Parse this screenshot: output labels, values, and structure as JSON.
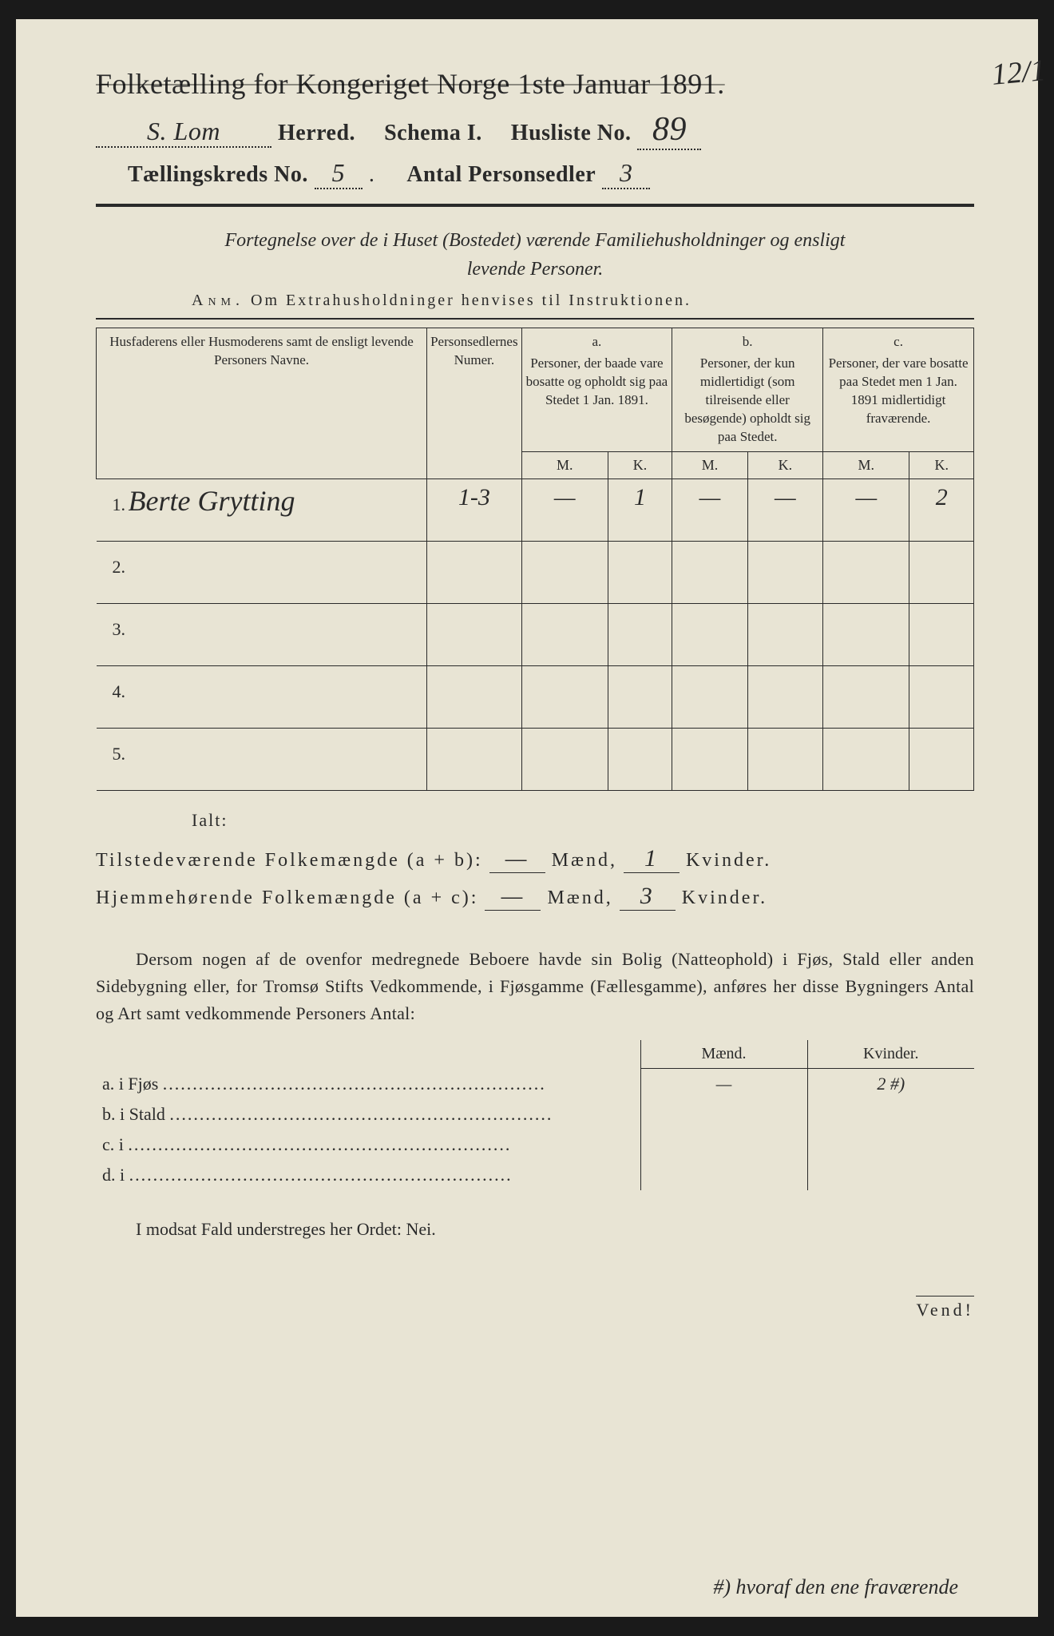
{
  "colors": {
    "paper": "#e8e4d4",
    "ink": "#2a2a2a",
    "background": "#1a1a1a"
  },
  "header": {
    "title": "Folketælling for Kongeriget Norge 1ste Januar 1891.",
    "margin_annotation": "12/1",
    "line2": {
      "herred_value": "S. Lom",
      "herred_label": "Herred.",
      "schema_label": "Schema I.",
      "husliste_label": "Husliste No.",
      "husliste_value": "89"
    },
    "line3": {
      "kreds_label": "Tællingskreds No.",
      "kreds_value": "5",
      "antal_label": "Antal Personsedler",
      "antal_value": "3"
    }
  },
  "subtitle": {
    "line1": "Fortegnelse over de i Huset (Bostedet) værende Familiehusholdninger og ensligt",
    "line2": "levende Personer."
  },
  "anm": {
    "label": "Anm.",
    "text": "Om Extrahusholdninger henvises til Instruktionen."
  },
  "table": {
    "col_names_header": "Husfaderens eller Husmoderens samt de ensligt levende Personers Navne.",
    "col_num_header": "Personsedlernes Numer.",
    "col_a": {
      "letter": "a.",
      "text": "Personer, der baade vare bosatte og opholdt sig paa Stedet 1 Jan. 1891."
    },
    "col_b": {
      "letter": "b.",
      "text": "Personer, der kun midlertidigt (som tilreisende eller besøgende) opholdt sig paa Stedet."
    },
    "col_c": {
      "letter": "c.",
      "text": "Personer, der vare bosatte paa Stedet men 1 Jan. 1891 midlertidigt fraværende."
    },
    "mk": {
      "m": "M.",
      "k": "K."
    },
    "rows": [
      {
        "num": "1.",
        "name": "Berte Grytting",
        "sedler": "1-3",
        "a_m": "—",
        "a_k": "1",
        "b_m": "—",
        "b_k": "—",
        "c_m": "—",
        "c_k": "2"
      },
      {
        "num": "2.",
        "name": "",
        "sedler": "",
        "a_m": "",
        "a_k": "",
        "b_m": "",
        "b_k": "",
        "c_m": "",
        "c_k": ""
      },
      {
        "num": "3.",
        "name": "",
        "sedler": "",
        "a_m": "",
        "a_k": "",
        "b_m": "",
        "b_k": "",
        "c_m": "",
        "c_k": ""
      },
      {
        "num": "4.",
        "name": "",
        "sedler": "",
        "a_m": "",
        "a_k": "",
        "b_m": "",
        "b_k": "",
        "c_m": "",
        "c_k": ""
      },
      {
        "num": "5.",
        "name": "",
        "sedler": "",
        "a_m": "",
        "a_k": "",
        "b_m": "",
        "b_k": "",
        "c_m": "",
        "c_k": ""
      }
    ]
  },
  "ialt_label": "Ialt:",
  "totals": {
    "line1": {
      "label": "Tilstedeværende Folkemængde (a + b):",
      "maend": "—",
      "maend_label": "Mænd,",
      "kvinder": "1",
      "kvinder_label": "Kvinder."
    },
    "line2": {
      "label": "Hjemmehørende Folkemængde (a + c):",
      "maend": "—",
      "maend_label": "Mænd,",
      "kvinder": "3",
      "kvinder_label": "Kvinder."
    }
  },
  "paragraph": "Dersom nogen af de ovenfor medregnede Beboere havde sin Bolig (Natteophold) i Fjøs, Stald eller anden Sidebygning eller, for Tromsø Stifts Vedkommende, i Fjøsgamme (Fællesgamme), anføres her disse Bygningers Antal og Art samt vedkommende Personers Antal:",
  "buildings": {
    "head_m": "Mænd.",
    "head_k": "Kvinder.",
    "rows": [
      {
        "label": "a.  i      Fjøs",
        "m": "—",
        "k": "2  #)"
      },
      {
        "label": "b.  i      Stald",
        "m": "",
        "k": ""
      },
      {
        "label": "c.  i",
        "m": "",
        "k": ""
      },
      {
        "label": "d.  i",
        "m": "",
        "k": ""
      }
    ]
  },
  "nei_line": "I modsat Fald understreges her Ordet: Nei.",
  "vend": "Vend!",
  "footnote": "#) hvoraf den ene fraværende"
}
